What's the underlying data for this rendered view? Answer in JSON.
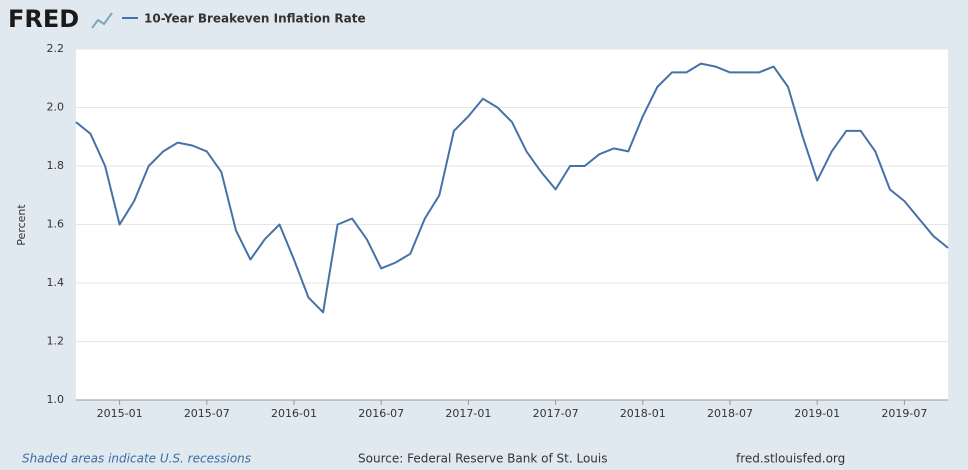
{
  "logo": "FRED",
  "footer": {
    "note": "Shaded areas indicate U.S. recessions",
    "source": "Source: Federal Reserve Bank of St. Louis",
    "site": "fred.stlouisfed.org"
  },
  "chart_data": {
    "type": "line",
    "ylabel": "Percent",
    "x": [
      "2014-10",
      "2014-11",
      "2014-12",
      "2015-01",
      "2015-02",
      "2015-03",
      "2015-04",
      "2015-05",
      "2015-06",
      "2015-07",
      "2015-08",
      "2015-09",
      "2015-10",
      "2015-11",
      "2015-12",
      "2016-01",
      "2016-02",
      "2016-03",
      "2016-04",
      "2016-05",
      "2016-06",
      "2016-07",
      "2016-08",
      "2016-09",
      "2016-10",
      "2016-11",
      "2016-12",
      "2017-01",
      "2017-02",
      "2017-03",
      "2017-04",
      "2017-05",
      "2017-06",
      "2017-07",
      "2017-08",
      "2017-09",
      "2017-10",
      "2017-11",
      "2017-12",
      "2018-01",
      "2018-02",
      "2018-03",
      "2018-04",
      "2018-05",
      "2018-06",
      "2018-07",
      "2018-08",
      "2018-09",
      "2018-10",
      "2018-11",
      "2018-12",
      "2019-01",
      "2019-02",
      "2019-03",
      "2019-04",
      "2019-05",
      "2019-06",
      "2019-07",
      "2019-08",
      "2019-09",
      "2019-10"
    ],
    "series": [
      {
        "name": "10-Year Breakeven Inflation Rate",
        "color": "#4572a7",
        "values": [
          1.95,
          1.91,
          1.8,
          1.6,
          1.68,
          1.8,
          1.85,
          1.88,
          1.87,
          1.85,
          1.78,
          1.58,
          1.48,
          1.55,
          1.6,
          1.48,
          1.35,
          1.3,
          1.6,
          1.62,
          1.55,
          1.45,
          1.47,
          1.5,
          1.62,
          1.7,
          1.92,
          1.97,
          2.03,
          2.0,
          1.95,
          1.85,
          1.78,
          1.72,
          1.8,
          1.8,
          1.84,
          1.86,
          1.85,
          1.97,
          2.07,
          2.12,
          2.12,
          2.15,
          2.14,
          2.12,
          2.12,
          2.12,
          2.14,
          2.07,
          1.9,
          1.75,
          1.85,
          1.92,
          1.92,
          1.85,
          1.72,
          1.68,
          1.62,
          1.56,
          1.52
        ]
      }
    ],
    "xlim": [
      "2014-10",
      "2019-10"
    ],
    "xticks": [
      "2015-01",
      "2015-07",
      "2016-01",
      "2016-07",
      "2017-01",
      "2017-07",
      "2018-01",
      "2018-07",
      "2019-01",
      "2019-07"
    ],
    "ylim": [
      1.0,
      2.2
    ],
    "yticks": [
      {
        "value": 1,
        "label": "1.0"
      },
      1.2,
      1.4,
      1.6,
      1.8,
      {
        "value": 2,
        "label": "2.0"
      },
      2.2
    ],
    "grid": true
  }
}
